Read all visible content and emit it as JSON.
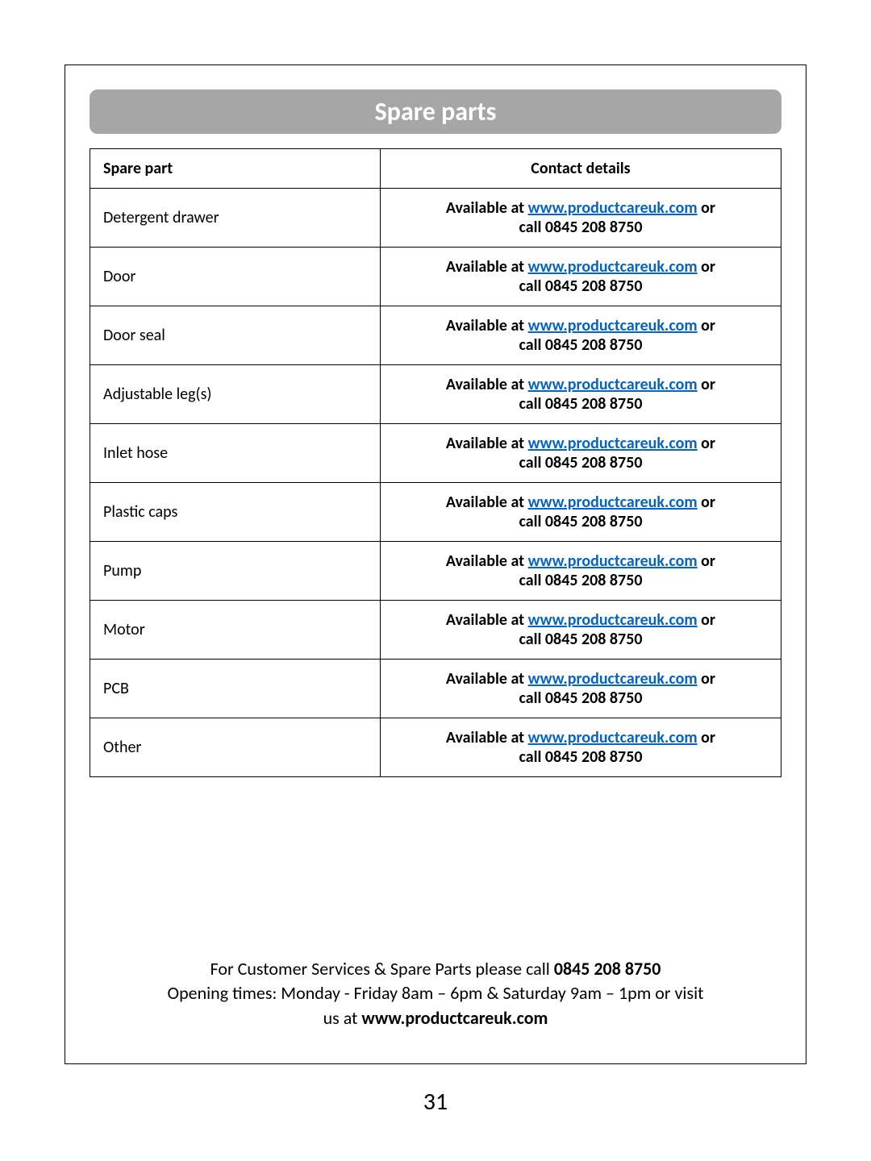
{
  "page": {
    "title": "Spare parts",
    "number": "31"
  },
  "table": {
    "columns": [
      "Spare part",
      "Contact details"
    ],
    "contact": {
      "prefix": "Available at ",
      "link_text": "www.productcareuk.com",
      "suffix_line1": " or",
      "line2": "call 0845 208 8750"
    },
    "rows": [
      "Detergent drawer",
      "Door",
      "Door seal",
      "Adjustable leg(s)",
      "Inlet hose",
      "Plastic caps",
      "Pump",
      "Motor",
      "PCB",
      "Other"
    ]
  },
  "footer": {
    "line1_prefix": "For Customer Services & Spare Parts please call ",
    "phone": "0845 208 8750",
    "line2": "Opening times: Monday - Friday  8am – 6pm & Saturday 9am – 1pm or visit",
    "line3_prefix": "us at ",
    "website": "www.productcareuk.com"
  },
  "colors": {
    "title_bg": "#a6a6a6",
    "title_text": "#ffffff",
    "link": "#0563c1",
    "border": "#000000",
    "background": "#ffffff"
  },
  "typography": {
    "title_fontsize": 32,
    "table_fontsize": 20,
    "footer_fontsize": 22,
    "page_number_fontsize": 30,
    "font_family": "Calibri"
  }
}
